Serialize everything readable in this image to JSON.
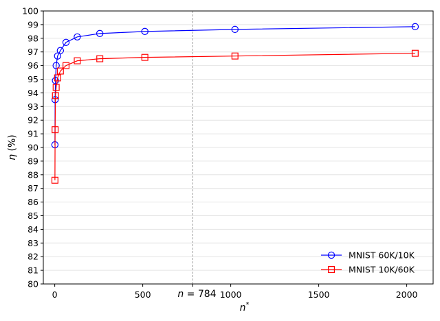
{
  "chart_data": {
    "type": "line",
    "xlabel": "n*",
    "ylabel": "η (%)",
    "xlim": [
      -65,
      2150
    ],
    "ylim": [
      80,
      100
    ],
    "xticks": [
      0,
      500,
      1000,
      1500,
      2000
    ],
    "yticks": [
      80,
      81,
      82,
      83,
      84,
      85,
      86,
      87,
      88,
      89,
      90,
      91,
      92,
      93,
      94,
      95,
      96,
      97,
      98,
      99,
      100
    ],
    "grid": "horizontal",
    "legend_position": "lower-right",
    "vline": {
      "x": 784,
      "label": "n = 784",
      "style": "dashed",
      "color": "#888888"
    },
    "series": [
      {
        "name": "MNIST 60K/10K",
        "color": "#0000ff",
        "marker": "circle",
        "x": [
          1,
          2,
          4,
          8,
          16,
          32,
          64,
          128,
          256,
          512,
          1024,
          2048
        ],
        "y": [
          90.2,
          93.5,
          94.9,
          96.0,
          96.7,
          97.1,
          97.7,
          98.1,
          98.35,
          98.5,
          98.65,
          98.85
        ]
      },
      {
        "name": "MNIST 10K/60K",
        "color": "#ff0000",
        "marker": "square",
        "x": [
          1,
          2,
          4,
          8,
          16,
          32,
          64,
          128,
          256,
          512,
          1024,
          2048
        ],
        "y": [
          87.6,
          91.3,
          93.8,
          94.4,
          95.1,
          95.6,
          96.0,
          96.35,
          96.5,
          96.6,
          96.7,
          96.9
        ]
      }
    ]
  }
}
